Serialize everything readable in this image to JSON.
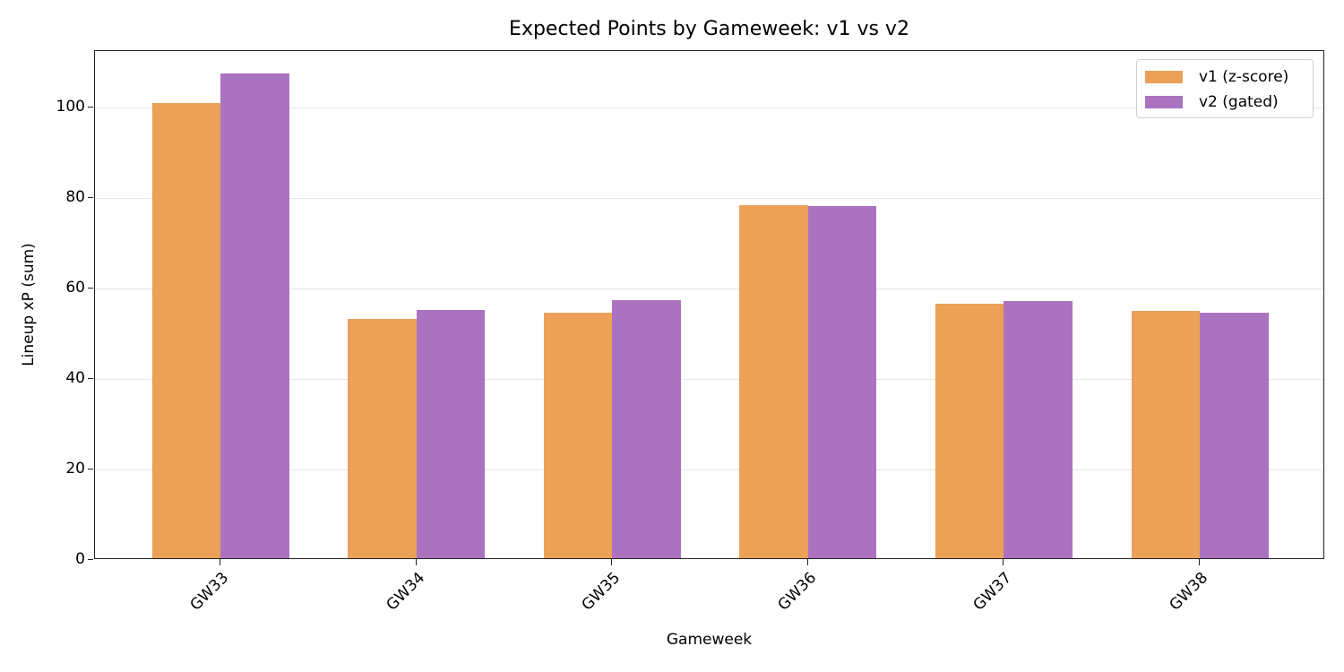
{
  "chart_data": {
    "type": "bar",
    "title": "Expected Points by Gameweek: v1 vs v2",
    "xlabel": "Gameweek",
    "ylabel": "Lineup xP (sum)",
    "categories": [
      "GW33",
      "GW34",
      "GW35",
      "GW36",
      "GW37",
      "GW38"
    ],
    "series": [
      {
        "name": "v1 (z-score)",
        "color": "#eba158",
        "values": [
          100.6,
          52.9,
          54.3,
          78.0,
          56.2,
          54.7
        ]
      },
      {
        "name": "v2 (gated)",
        "color": "#ab72c0",
        "values": [
          107.1,
          54.9,
          57.0,
          77.8,
          56.8,
          54.3
        ]
      }
    ],
    "ylim": [
      0,
      112.5
    ],
    "yticks": [
      0,
      20,
      40,
      60,
      80,
      100
    ],
    "grid": "y",
    "legend_position": "upper right",
    "xtick_rotation": 45
  }
}
